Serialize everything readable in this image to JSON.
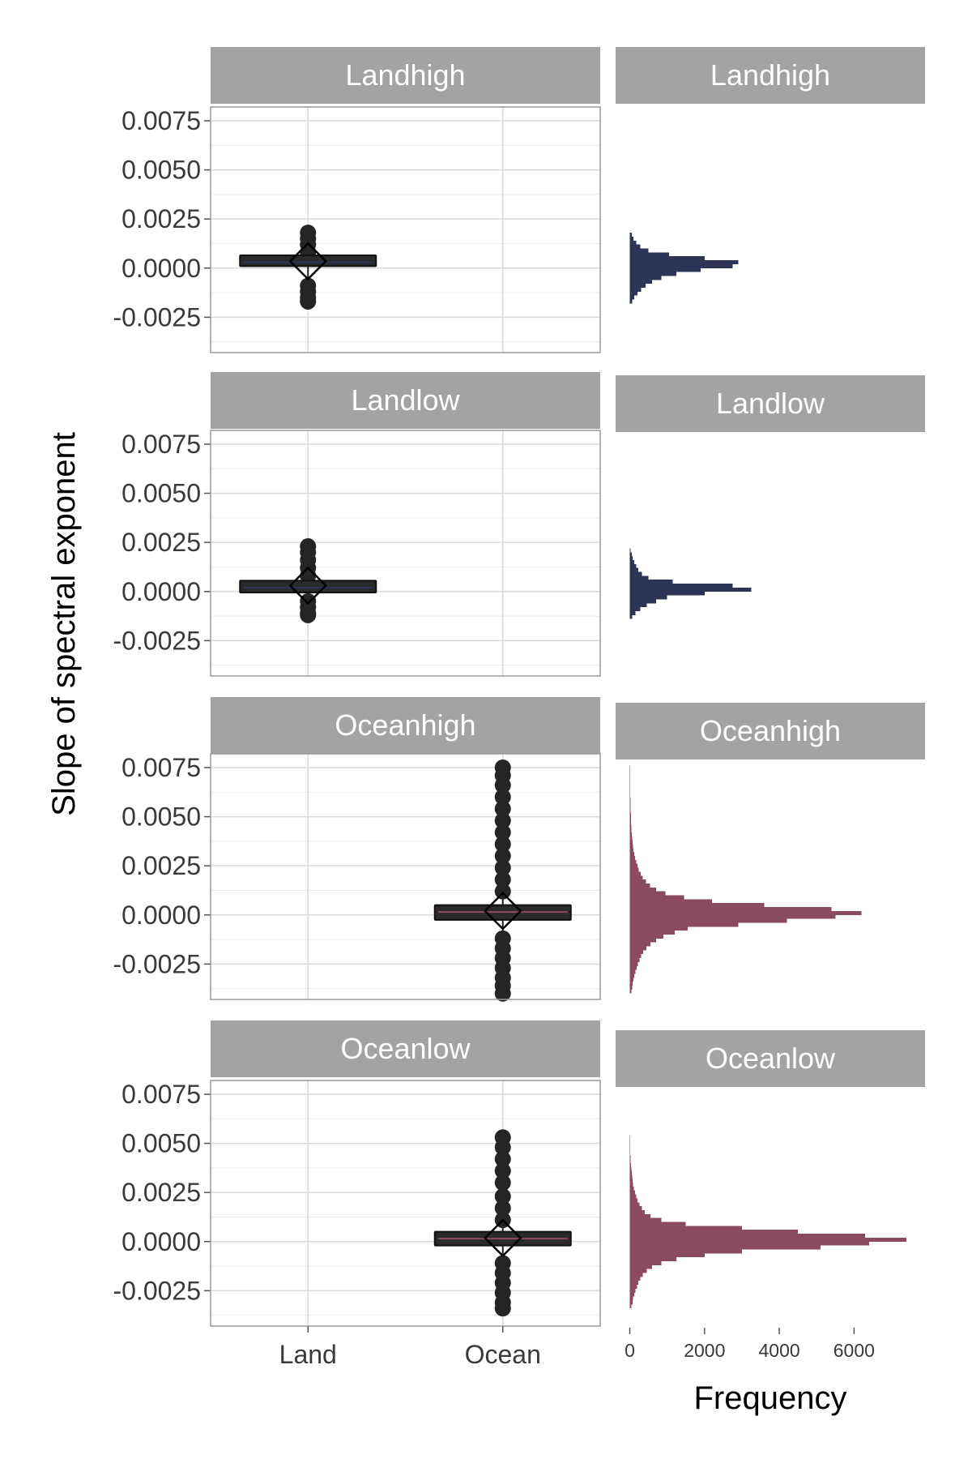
{
  "chart_data": [
    {
      "type": "box",
      "ylabel": "Slope of spectral exponent",
      "categories": [
        "Land",
        "Ocean"
      ],
      "y_ticks": [
        "0.0075",
        "0.0050",
        "0.0025",
        "0.0000",
        "-0.0025"
      ],
      "y_tick_values": [
        0.0075,
        0.005,
        0.0025,
        0.0,
        -0.0025
      ],
      "ylim": [
        -0.0043,
        0.0082
      ],
      "grid": true,
      "panels": [
        {
          "label": "Landhigh",
          "category": "Land",
          "color": "#2e3456",
          "box": {
            "q1": 0.0001,
            "median": 0.0003,
            "q3": 0.00065,
            "mean": 0.00035
          },
          "outliers_high": [
            0.0008,
            0.0012,
            0.0015,
            0.0018
          ],
          "outliers_low": [
            -0.0009,
            -0.0012,
            -0.0015,
            -0.0017
          ]
        },
        {
          "label": "Landlow",
          "category": "Land",
          "color": "#2e3456",
          "box": {
            "q1": -5e-05,
            "median": 0.0002,
            "q3": 0.00055,
            "mean": 0.0003
          },
          "outliers_high": [
            0.0008,
            0.0012,
            0.0016,
            0.002,
            0.0023
          ],
          "outliers_low": [
            -0.0005,
            -0.0008,
            -0.0011,
            -0.0012
          ]
        },
        {
          "label": "Oceanhigh",
          "category": "Ocean",
          "color": "#8a4a62",
          "box": {
            "q1": -0.00025,
            "median": 0.00015,
            "q3": 0.0005,
            "mean": 0.0002
          },
          "outliers_high": [
            0.0012,
            0.0018,
            0.0024,
            0.003,
            0.0036,
            0.0042,
            0.0048,
            0.0054,
            0.006,
            0.0066,
            0.0071,
            0.0075
          ],
          "outliers_low": [
            -0.0012,
            -0.0017,
            -0.0022,
            -0.0027,
            -0.0032,
            -0.0036,
            -0.004
          ]
        },
        {
          "label": "Oceanlow",
          "category": "Ocean",
          "color": "#8a4a62",
          "box": {
            "q1": -0.0002,
            "median": 0.00015,
            "q3": 0.0005,
            "mean": 0.00018
          },
          "outliers_high": [
            0.0011,
            0.0017,
            0.0023,
            0.003,
            0.0036,
            0.0042,
            0.0048,
            0.0053
          ],
          "outliers_low": [
            -0.0011,
            -0.0016,
            -0.0021,
            -0.0026,
            -0.0031,
            -0.0034
          ]
        }
      ]
    },
    {
      "type": "histogram",
      "orientation": "horizontal",
      "xlabel": "Frequency",
      "x_ticks": [
        "0",
        "2000",
        "4000",
        "6000"
      ],
      "x_tick_values": [
        0,
        2000,
        4000,
        6000
      ],
      "xlim": [
        -380,
        7900
      ],
      "ylim": [
        -0.0043,
        0.0082
      ],
      "grid": false,
      "bin_width": 0.0002,
      "panels": [
        {
          "label": "Landhigh",
          "color": "#2e3456",
          "bins": [
            {
              "y": -0.0017,
              "count": 60
            },
            {
              "y": -0.0015,
              "count": 120
            },
            {
              "y": -0.0013,
              "count": 200
            },
            {
              "y": -0.0011,
              "count": 300
            },
            {
              "y": -0.0009,
              "count": 420
            },
            {
              "y": -0.0007,
              "count": 600
            },
            {
              "y": -0.0005,
              "count": 850
            },
            {
              "y": -0.0003,
              "count": 1250
            },
            {
              "y": -0.0001,
              "count": 1900
            },
            {
              "y": 0.0001,
              "count": 2750
            },
            {
              "y": 0.0003,
              "count": 2900
            },
            {
              "y": 0.0005,
              "count": 2000
            },
            {
              "y": 0.0007,
              "count": 1050
            },
            {
              "y": 0.0009,
              "count": 500
            },
            {
              "y": 0.0011,
              "count": 280
            },
            {
              "y": 0.0013,
              "count": 170
            },
            {
              "y": 0.0015,
              "count": 100
            },
            {
              "y": 0.0017,
              "count": 50
            }
          ]
        },
        {
          "label": "Landlow",
          "color": "#2e3456",
          "bins": [
            {
              "y": -0.0013,
              "count": 60
            },
            {
              "y": -0.0011,
              "count": 150
            },
            {
              "y": -0.0009,
              "count": 280
            },
            {
              "y": -0.0007,
              "count": 450
            },
            {
              "y": -0.0005,
              "count": 700
            },
            {
              "y": -0.0003,
              "count": 1000
            },
            {
              "y": -0.0001,
              "count": 2000
            },
            {
              "y": 0.0001,
              "count": 3250
            },
            {
              "y": 0.0003,
              "count": 2750
            },
            {
              "y": 0.0005,
              "count": 1150
            },
            {
              "y": 0.0007,
              "count": 500
            },
            {
              "y": 0.0009,
              "count": 320
            },
            {
              "y": 0.0011,
              "count": 230
            },
            {
              "y": 0.0013,
              "count": 170
            },
            {
              "y": 0.0015,
              "count": 120
            },
            {
              "y": 0.0017,
              "count": 80
            },
            {
              "y": 0.0019,
              "count": 50
            },
            {
              "y": 0.0021,
              "count": 25
            }
          ]
        },
        {
          "label": "Oceanhigh",
          "color": "#8a4a62",
          "bins": [
            {
              "y": -0.0039,
              "count": 40
            },
            {
              "y": -0.0037,
              "count": 60
            },
            {
              "y": -0.0035,
              "count": 80
            },
            {
              "y": -0.0033,
              "count": 100
            },
            {
              "y": -0.0031,
              "count": 120
            },
            {
              "y": -0.0029,
              "count": 150
            },
            {
              "y": -0.0027,
              "count": 180
            },
            {
              "y": -0.0025,
              "count": 220
            },
            {
              "y": -0.0023,
              "count": 260
            },
            {
              "y": -0.0021,
              "count": 300
            },
            {
              "y": -0.0019,
              "count": 360
            },
            {
              "y": -0.0017,
              "count": 440
            },
            {
              "y": -0.0015,
              "count": 550
            },
            {
              "y": -0.0013,
              "count": 700
            },
            {
              "y": -0.0011,
              "count": 900
            },
            {
              "y": -0.0009,
              "count": 1200
            },
            {
              "y": -0.0007,
              "count": 1550
            },
            {
              "y": -0.0005,
              "count": 2900
            },
            {
              "y": -0.0003,
              "count": 4200
            },
            {
              "y": -0.0001,
              "count": 5500
            },
            {
              "y": 0.0001,
              "count": 6200
            },
            {
              "y": 0.0003,
              "count": 5400
            },
            {
              "y": 0.0005,
              "count": 3600
            },
            {
              "y": 0.0007,
              "count": 2200
            },
            {
              "y": 0.0009,
              "count": 1450
            },
            {
              "y": 0.0011,
              "count": 950
            },
            {
              "y": 0.0013,
              "count": 700
            },
            {
              "y": 0.0015,
              "count": 540
            },
            {
              "y": 0.0017,
              "count": 430
            },
            {
              "y": 0.0019,
              "count": 350
            },
            {
              "y": 0.0021,
              "count": 290
            },
            {
              "y": 0.0023,
              "count": 240
            },
            {
              "y": 0.0025,
              "count": 200
            },
            {
              "y": 0.0027,
              "count": 170
            },
            {
              "y": 0.0029,
              "count": 140
            },
            {
              "y": 0.0031,
              "count": 120
            },
            {
              "y": 0.0033,
              "count": 100
            },
            {
              "y": 0.0035,
              "count": 85
            },
            {
              "y": 0.0037,
              "count": 70
            },
            {
              "y": 0.0039,
              "count": 60
            },
            {
              "y": 0.0041,
              "count": 50
            },
            {
              "y": 0.0043,
              "count": 45
            },
            {
              "y": 0.0045,
              "count": 40
            },
            {
              "y": 0.0047,
              "count": 35
            },
            {
              "y": 0.0049,
              "count": 30
            },
            {
              "y": 0.0051,
              "count": 28
            },
            {
              "y": 0.0053,
              "count": 25
            },
            {
              "y": 0.0055,
              "count": 22
            },
            {
              "y": 0.0057,
              "count": 20
            },
            {
              "y": 0.0059,
              "count": 18
            },
            {
              "y": 0.0061,
              "count": 15
            },
            {
              "y": 0.0063,
              "count": 12
            },
            {
              "y": 0.0065,
              "count": 10
            },
            {
              "y": 0.0067,
              "count": 8
            },
            {
              "y": 0.0069,
              "count": 6
            },
            {
              "y": 0.0071,
              "count": 5
            },
            {
              "y": 0.0073,
              "count": 4
            },
            {
              "y": 0.0075,
              "count": 3
            }
          ]
        },
        {
          "label": "Oceanlow",
          "color": "#8a4a62",
          "bins": [
            {
              "y": -0.0033,
              "count": 40
            },
            {
              "y": -0.0031,
              "count": 70
            },
            {
              "y": -0.0029,
              "count": 90
            },
            {
              "y": -0.0027,
              "count": 120
            },
            {
              "y": -0.0025,
              "count": 150
            },
            {
              "y": -0.0023,
              "count": 190
            },
            {
              "y": -0.0021,
              "count": 230
            },
            {
              "y": -0.0019,
              "count": 280
            },
            {
              "y": -0.0017,
              "count": 350
            },
            {
              "y": -0.0015,
              "count": 450
            },
            {
              "y": -0.0013,
              "count": 600
            },
            {
              "y": -0.0011,
              "count": 850
            },
            {
              "y": -0.0009,
              "count": 1250
            },
            {
              "y": -0.0007,
              "count": 2000
            },
            {
              "y": -0.0005,
              "count": 3000
            },
            {
              "y": -0.0003,
              "count": 5100
            },
            {
              "y": -0.0001,
              "count": 6400
            },
            {
              "y": 0.0001,
              "count": 7400
            },
            {
              "y": 0.0003,
              "count": 6300
            },
            {
              "y": 0.0005,
              "count": 4500
            },
            {
              "y": 0.0007,
              "count": 3000
            },
            {
              "y": 0.0009,
              "count": 1500
            },
            {
              "y": 0.0011,
              "count": 850
            },
            {
              "y": 0.0013,
              "count": 550
            },
            {
              "y": 0.0015,
              "count": 400
            },
            {
              "y": 0.0017,
              "count": 320
            },
            {
              "y": 0.0019,
              "count": 260
            },
            {
              "y": 0.0021,
              "count": 210
            },
            {
              "y": 0.0023,
              "count": 170
            },
            {
              "y": 0.0025,
              "count": 140
            },
            {
              "y": 0.0027,
              "count": 110
            },
            {
              "y": 0.0029,
              "count": 90
            },
            {
              "y": 0.0031,
              "count": 75
            },
            {
              "y": 0.0033,
              "count": 60
            },
            {
              "y": 0.0035,
              "count": 50
            },
            {
              "y": 0.0037,
              "count": 40
            },
            {
              "y": 0.0039,
              "count": 32
            },
            {
              "y": 0.0041,
              "count": 25
            },
            {
              "y": 0.0043,
              "count": 20
            },
            {
              "y": 0.0045,
              "count": 15
            },
            {
              "y": 0.0047,
              "count": 10
            },
            {
              "y": 0.0049,
              "count": 8
            },
            {
              "y": 0.0051,
              "count": 5
            },
            {
              "y": 0.0053,
              "count": 3
            }
          ]
        }
      ]
    }
  ]
}
